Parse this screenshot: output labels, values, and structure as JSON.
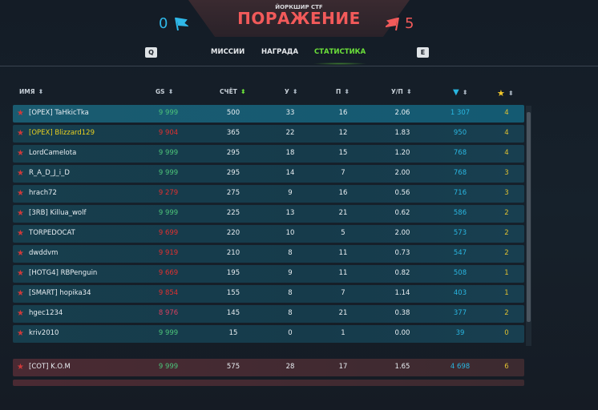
{
  "header": {
    "map_mode": "ЙОРКШИР CTF",
    "result": "ПОРАЖЕНИЕ",
    "blue_score": "0",
    "red_score": "5",
    "blue_flag_icon": "blue-flag-icon",
    "red_flag_icon": "red-flag-icon"
  },
  "tabs": {
    "prev_key": "Q",
    "next_key": "E",
    "items": [
      {
        "label": "МИССИИ"
      },
      {
        "label": "НАГРАДА"
      },
      {
        "label": "СТАТИСТИКА",
        "active": true
      }
    ]
  },
  "columns": {
    "name": "ИМЯ",
    "gs": "GS",
    "score": "СЧЁТ",
    "kills": "У",
    "deaths": "П",
    "kd": "У/П",
    "crystals_icon": "crystal-icon",
    "stars_icon": "star-icon"
  },
  "colors": {
    "blue_team": "#2fb8e8",
    "red_team": "#f25a5a",
    "active_tab": "#6be03a",
    "gs_low": "#e03030",
    "crystals": "#29b6e0",
    "stars": "#e0c030"
  },
  "blue_team": [
    {
      "name": "[OPEX] TaHkicTka",
      "gs": "9 999",
      "score": "500",
      "kills": "33",
      "deaths": "16",
      "kd": "2.06",
      "crystals": "1 307",
      "stars": "4",
      "me": true
    },
    {
      "name": "[OPEX] Blizzard129",
      "gs": "9 904",
      "score": "365",
      "kills": "22",
      "deaths": "12",
      "kd": "1.83",
      "crystals": "950",
      "stars": "4",
      "clan_highlight": true
    },
    {
      "name": "LordCamelota",
      "gs": "9 999",
      "score": "295",
      "kills": "18",
      "deaths": "15",
      "kd": "1.20",
      "crystals": "768",
      "stars": "4"
    },
    {
      "name": "R_A_D_J_i_D",
      "gs": "9 999",
      "score": "295",
      "kills": "14",
      "deaths": "7",
      "kd": "2.00",
      "crystals": "768",
      "stars": "3"
    },
    {
      "name": "hrach72",
      "gs": "9 279",
      "score": "275",
      "kills": "9",
      "deaths": "16",
      "kd": "0.56",
      "crystals": "716",
      "stars": "3"
    },
    {
      "name": "[3RB] Killua_wolf",
      "gs": "9 999",
      "score": "225",
      "kills": "13",
      "deaths": "21",
      "kd": "0.62",
      "crystals": "586",
      "stars": "2"
    },
    {
      "name": "TORPEDOCAT",
      "gs": "9 699",
      "score": "220",
      "kills": "10",
      "deaths": "5",
      "kd": "2.00",
      "crystals": "573",
      "stars": "2"
    },
    {
      "name": "dwddvm",
      "gs": "9 919",
      "score": "210",
      "kills": "8",
      "deaths": "11",
      "kd": "0.73",
      "crystals": "547",
      "stars": "2"
    },
    {
      "name": "[HOTG4] RBPenguin",
      "gs": "9 669",
      "score": "195",
      "kills": "9",
      "deaths": "11",
      "kd": "0.82",
      "crystals": "508",
      "stars": "1"
    },
    {
      "name": "[SMART] hopika34",
      "gs": "9 854",
      "score": "155",
      "kills": "8",
      "deaths": "7",
      "kd": "1.14",
      "crystals": "403",
      "stars": "1"
    },
    {
      "name": "hgec1234",
      "gs": "8 976",
      "score": "145",
      "kills": "8",
      "deaths": "21",
      "kd": "0.38",
      "crystals": "377",
      "stars": "2"
    },
    {
      "name": "kriv2010",
      "gs": "9 999",
      "score": "15",
      "kills": "0",
      "deaths": "1",
      "kd": "0.00",
      "crystals": "39",
      "stars": "0"
    }
  ],
  "red_team": [
    {
      "name": "[COT] K.O.M",
      "gs": "9 999",
      "score": "575",
      "kills": "28",
      "deaths": "17",
      "kd": "1.65",
      "crystals": "4 698",
      "stars": "6"
    }
  ]
}
